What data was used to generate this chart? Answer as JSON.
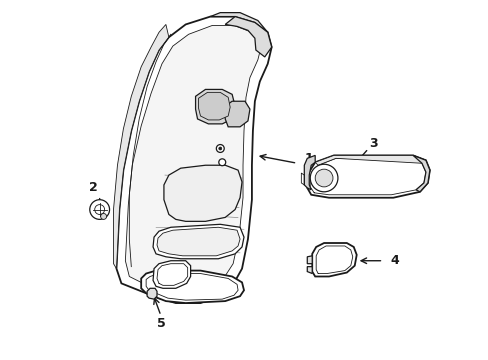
{
  "background_color": "#ffffff",
  "line_color": "#1a1a1a",
  "lw_thick": 1.3,
  "lw_medium": 0.9,
  "lw_thin": 0.6,
  "fig_width": 4.89,
  "fig_height": 3.6,
  "dpi": 100
}
